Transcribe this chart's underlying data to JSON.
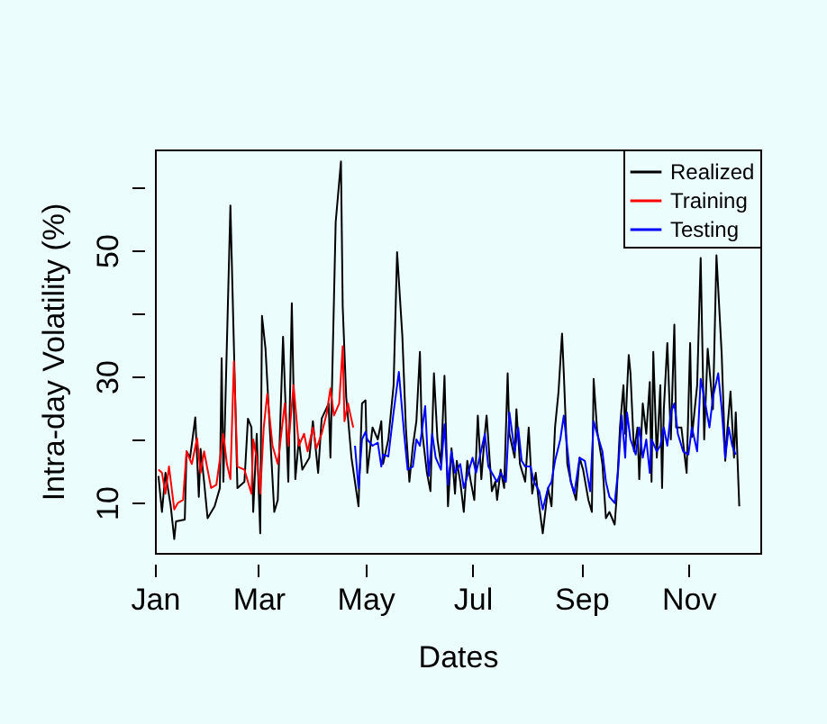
{
  "chart_data": {
    "type": "line",
    "xlabel": "Dates",
    "ylabel": "Intra-day Volatility (%)",
    "legend": "top right",
    "grid": false,
    "line_style": "solid",
    "marker": "none",
    "xlim": [
      "--01-01",
      "--12-12"
    ],
    "xticks": [
      {
        "value": "--01-01",
        "label": "Jan"
      },
      {
        "value": "--03-01",
        "label": "Mar"
      },
      {
        "value": "--05-01",
        "label": "May"
      },
      {
        "value": "--07-01",
        "label": "Jul"
      },
      {
        "value": "--09-01",
        "label": "Sep"
      },
      {
        "value": "--11-01",
        "label": "Nov"
      }
    ],
    "ylim": [
      2,
      66
    ],
    "yticks": [
      {
        "value": 10,
        "label": "10"
      },
      {
        "value": 20,
        "label": null
      },
      {
        "value": 30,
        "label": "30"
      },
      {
        "value": 40,
        "label": null
      },
      {
        "value": 50,
        "label": "50"
      },
      {
        "value": 60,
        "label": null
      }
    ],
    "series": [
      {
        "name": "Realized",
        "color": "#000000",
        "x": [
          "--01-03",
          "--01-05",
          "--01-07",
          "--01-10",
          "--01-12",
          "--01-13",
          "--01-18",
          "--01-19",
          "--01-21",
          "--01-24",
          "--01-26",
          "--01-27",
          "--01-29",
          "--01-31",
          "--02-04",
          "--02-07",
          "--02-08",
          "--02-09",
          "--02-13",
          "--02-17",
          "--02-21",
          "--02-23",
          "--02-25",
          "--02-26",
          "--02-28",
          "--03-02",
          "--03-03",
          "--03-05",
          "--03-10",
          "--03-12",
          "--03-15",
          "--03-18",
          "--03-20",
          "--03-22",
          "--03-24",
          "--03-26",
          "--03-30",
          "--04-01",
          "--04-04",
          "--04-06",
          "--04-10",
          "--04-11",
          "--04-14",
          "--04-17",
          "--04-18",
          "--04-20",
          "--04-23",
          "--04-27",
          "--04-29",
          "--05-01",
          "--05-02",
          "--05-05",
          "--05-08",
          "--05-10",
          "--05-11",
          "--05-14",
          "--05-17",
          "--05-19",
          "--05-22",
          "--05-24",
          "--05-26",
          "--05-28",
          "--05-30",
          "--06-01",
          "--06-02",
          "--06-05",
          "--06-07",
          "--06-09",
          "--06-11",
          "--06-13",
          "--06-15",
          "--06-17",
          "--06-19",
          "--06-21",
          "--06-22",
          "--06-24",
          "--06-26",
          "--06-28",
          "--06-30",
          "--07-02",
          "--07-04",
          "--07-06",
          "--07-08",
          "--07-09",
          "--07-12",
          "--07-14",
          "--07-15",
          "--07-17",
          "--07-19",
          "--07-21",
          "--07-22",
          "--07-25",
          "--07-26",
          "--07-28",
          "--07-31",
          "--08-02",
          "--08-04",
          "--08-06",
          "--08-08",
          "--08-10",
          "--08-13",
          "--08-15",
          "--08-17",
          "--08-19",
          "--08-21",
          "--08-22",
          "--08-24",
          "--08-26",
          "--08-29",
          "--08-31",
          "--09-02",
          "--09-05",
          "--09-07",
          "--09-08",
          "--09-10",
          "--09-13",
          "--09-15",
          "--09-17",
          "--09-20",
          "--09-21",
          "--09-23",
          "--09-25",
          "--09-26",
          "--09-27",
          "--09-28",
          "--09-29",
          "--10-01",
          "--10-03",
          "--10-04",
          "--10-06",
          "--10-08",
          "--10-10",
          "--10-11",
          "--10-12",
          "--10-14",
          "--10-16",
          "--10-17",
          "--10-18",
          "--10-20",
          "--10-22",
          "--10-24",
          "--10-25",
          "--10-28",
          "--10-31",
          "--11-02",
          "--11-03",
          "--11-06",
          "--11-08",
          "--11-10",
          "--11-12",
          "--11-15",
          "--11-17",
          "--11-20",
          "--11-22",
          "--11-23",
          "--11-25",
          "--11-27",
          "--11-28",
          "--11-30"
        ],
        "values": [
          14.2,
          8.5,
          14.7,
          9.4,
          4.2,
          7.0,
          7.3,
          18.1,
          17.1,
          23.5,
          10.9,
          18.5,
          13.3,
          7.5,
          9.4,
          12.3,
          32.9,
          13.3,
          57.1,
          12.3,
          13.3,
          23.3,
          21.9,
          8.5,
          20.9,
          5.1,
          39.6,
          34.4,
          8.5,
          10.4,
          36.3,
          13.3,
          41.6,
          13.7,
          20.0,
          15.2,
          17.1,
          22.9,
          14.7,
          23.3,
          25.7,
          17.1,
          54.5,
          64.1,
          41.1,
          26.7,
          17.1,
          9.4,
          25.7,
          26.2,
          14.7,
          21.9,
          20.0,
          22.9,
          16.1,
          20.0,
          28.6,
          49.7,
          36.3,
          21.9,
          13.3,
          19.0,
          22.9,
          33.9,
          21.9,
          14.7,
          11.8,
          30.5,
          20.0,
          16.1,
          30.1,
          9.4,
          18.6,
          11.4,
          16.6,
          13.3,
          8.5,
          16.6,
          13.3,
          10.4,
          23.8,
          13.7,
          20.9,
          23.8,
          11.8,
          13.3,
          10.4,
          15.2,
          12.3,
          30.5,
          20.9,
          17.1,
          24.8,
          16.1,
          13.3,
          21.9,
          11.4,
          14.7,
          9.4,
          5.1,
          12.3,
          9.4,
          21.9,
          27.6,
          36.8,
          30.5,
          16.1,
          13.3,
          10.4,
          17.1,
          15.2,
          10.4,
          8.5,
          29.6,
          21.4,
          16.1,
          7.5,
          8.5,
          6.5,
          10.4,
          21.9,
          28.6,
          20.9,
          27.6,
          33.4,
          30.5,
          18.1,
          21.9,
          13.7,
          25.7,
          20.9,
          29.1,
          13.3,
          33.9,
          17.1,
          28.6,
          12.3,
          24.8,
          35.3,
          20.0,
          38.2,
          21.9,
          21.9,
          14.7,
          35.3,
          20.4,
          28.6,
          48.8,
          20.0,
          34.4,
          24.8,
          49.2,
          33.4,
          16.6,
          20.9,
          27.6,
          17.1,
          24.3,
          9.4
        ]
      },
      {
        "name": "Training",
        "color": "#ff0000",
        "x": [
          "--01-03",
          "--01-05",
          "--01-07",
          "--01-09",
          "--01-12",
          "--01-14",
          "--01-17",
          "--01-19",
          "--01-22",
          "--01-25",
          "--01-27",
          "--01-29",
          "--02-02",
          "--02-05",
          "--02-09",
          "--02-11",
          "--02-13",
          "--02-15",
          "--02-17",
          "--02-21",
          "--02-25",
          "--02-26",
          "--02-28",
          "--03-02",
          "--03-04",
          "--03-06",
          "--03-09",
          "--03-12",
          "--03-16",
          "--03-18",
          "--03-21",
          "--03-24",
          "--03-27",
          "--03-29",
          "--04-01",
          "--04-03",
          "--04-06",
          "--04-09",
          "--04-11",
          "--04-13",
          "--04-16",
          "--04-18",
          "--04-19",
          "--04-21",
          "--04-24"
        ],
        "values": [
          15.2,
          14.7,
          11.4,
          15.7,
          8.9,
          9.9,
          10.4,
          18.1,
          16.1,
          20.2,
          14.7,
          18.1,
          12.3,
          12.8,
          20.9,
          16.1,
          13.7,
          32.4,
          15.7,
          15.2,
          11.4,
          20.0,
          17.1,
          11.4,
          21.9,
          27.2,
          19.0,
          16.1,
          25.7,
          19.0,
          28.6,
          19.0,
          20.9,
          18.1,
          21.9,
          18.6,
          20.9,
          24.3,
          28.1,
          23.8,
          25.7,
          34.8,
          22.9,
          25.7,
          21.9
        ]
      },
      {
        "name": "Testing",
        "color": "#0000ff",
        "x": [
          "--04-25",
          "--04-27",
          "--04-29",
          "--05-01",
          "--05-02",
          "--05-05",
          "--05-08",
          "--05-10",
          "--05-11",
          "--05-14",
          "--05-17",
          "--05-20",
          "--05-23",
          "--05-25",
          "--05-28",
          "--05-30",
          "--06-01",
          "--06-04",
          "--06-06",
          "--06-08",
          "--06-10",
          "--06-13",
          "--06-15",
          "--06-17",
          "--06-19",
          "--06-21",
          "--06-24",
          "--06-26",
          "--06-28",
          "--07-01",
          "--07-03",
          "--07-05",
          "--07-08",
          "--07-10",
          "--07-14",
          "--07-15",
          "--07-17",
          "--07-20",
          "--07-22",
          "--07-25",
          "--07-27",
          "--07-29",
          "--07-31",
          "--08-03",
          "--08-05",
          "--08-08",
          "--08-10",
          "--08-13",
          "--08-15",
          "--08-17",
          "--08-20",
          "--08-22",
          "--08-24",
          "--08-26",
          "--08-28",
          "--08-31",
          "--09-03",
          "--09-06",
          "--09-08",
          "--09-10",
          "--09-13",
          "--09-15",
          "--09-17",
          "--09-20",
          "--09-22",
          "--09-24",
          "--09-26",
          "--09-27",
          "--09-29",
          "--10-02",
          "--10-04",
          "--10-06",
          "--10-08",
          "--10-10",
          "--10-11",
          "--10-14",
          "--10-16",
          "--10-18",
          "--10-20",
          "--10-22",
          "--10-24",
          "--10-26",
          "--10-29",
          "--11-01",
          "--11-03",
          "--11-06",
          "--11-08",
          "--11-10",
          "--11-13",
          "--11-15",
          "--11-18",
          "--11-20",
          "--11-22",
          "--11-24",
          "--11-26",
          "--11-28"
        ],
        "values": [
          19.0,
          12.3,
          20.0,
          21.2,
          20.0,
          19.0,
          19.5,
          15.7,
          17.6,
          17.3,
          24.3,
          30.7,
          20.9,
          15.2,
          15.7,
          20.0,
          19.0,
          25.3,
          14.2,
          20.9,
          17.1,
          15.2,
          22.4,
          12.8,
          18.1,
          14.7,
          16.1,
          12.3,
          14.2,
          17.1,
          14.7,
          17.1,
          20.9,
          15.7,
          13.7,
          13.3,
          14.7,
          13.3,
          24.3,
          18.1,
          21.9,
          16.6,
          15.7,
          15.7,
          13.3,
          11.8,
          8.9,
          12.3,
          13.3,
          16.6,
          20.0,
          23.8,
          18.6,
          13.3,
          11.4,
          17.1,
          16.6,
          11.8,
          22.9,
          20.9,
          18.1,
          13.3,
          10.9,
          9.9,
          15.2,
          23.8,
          17.1,
          24.3,
          20.0,
          17.6,
          21.9,
          17.1,
          20.0,
          14.7,
          20.0,
          18.1,
          19.0,
          21.9,
          19.0,
          24.3,
          25.7,
          20.9,
          18.1,
          17.6,
          21.9,
          18.1,
          29.6,
          26.7,
          21.9,
          26.7,
          30.5,
          24.8,
          17.1,
          21.9,
          19.0,
          17.6
        ]
      }
    ]
  }
}
